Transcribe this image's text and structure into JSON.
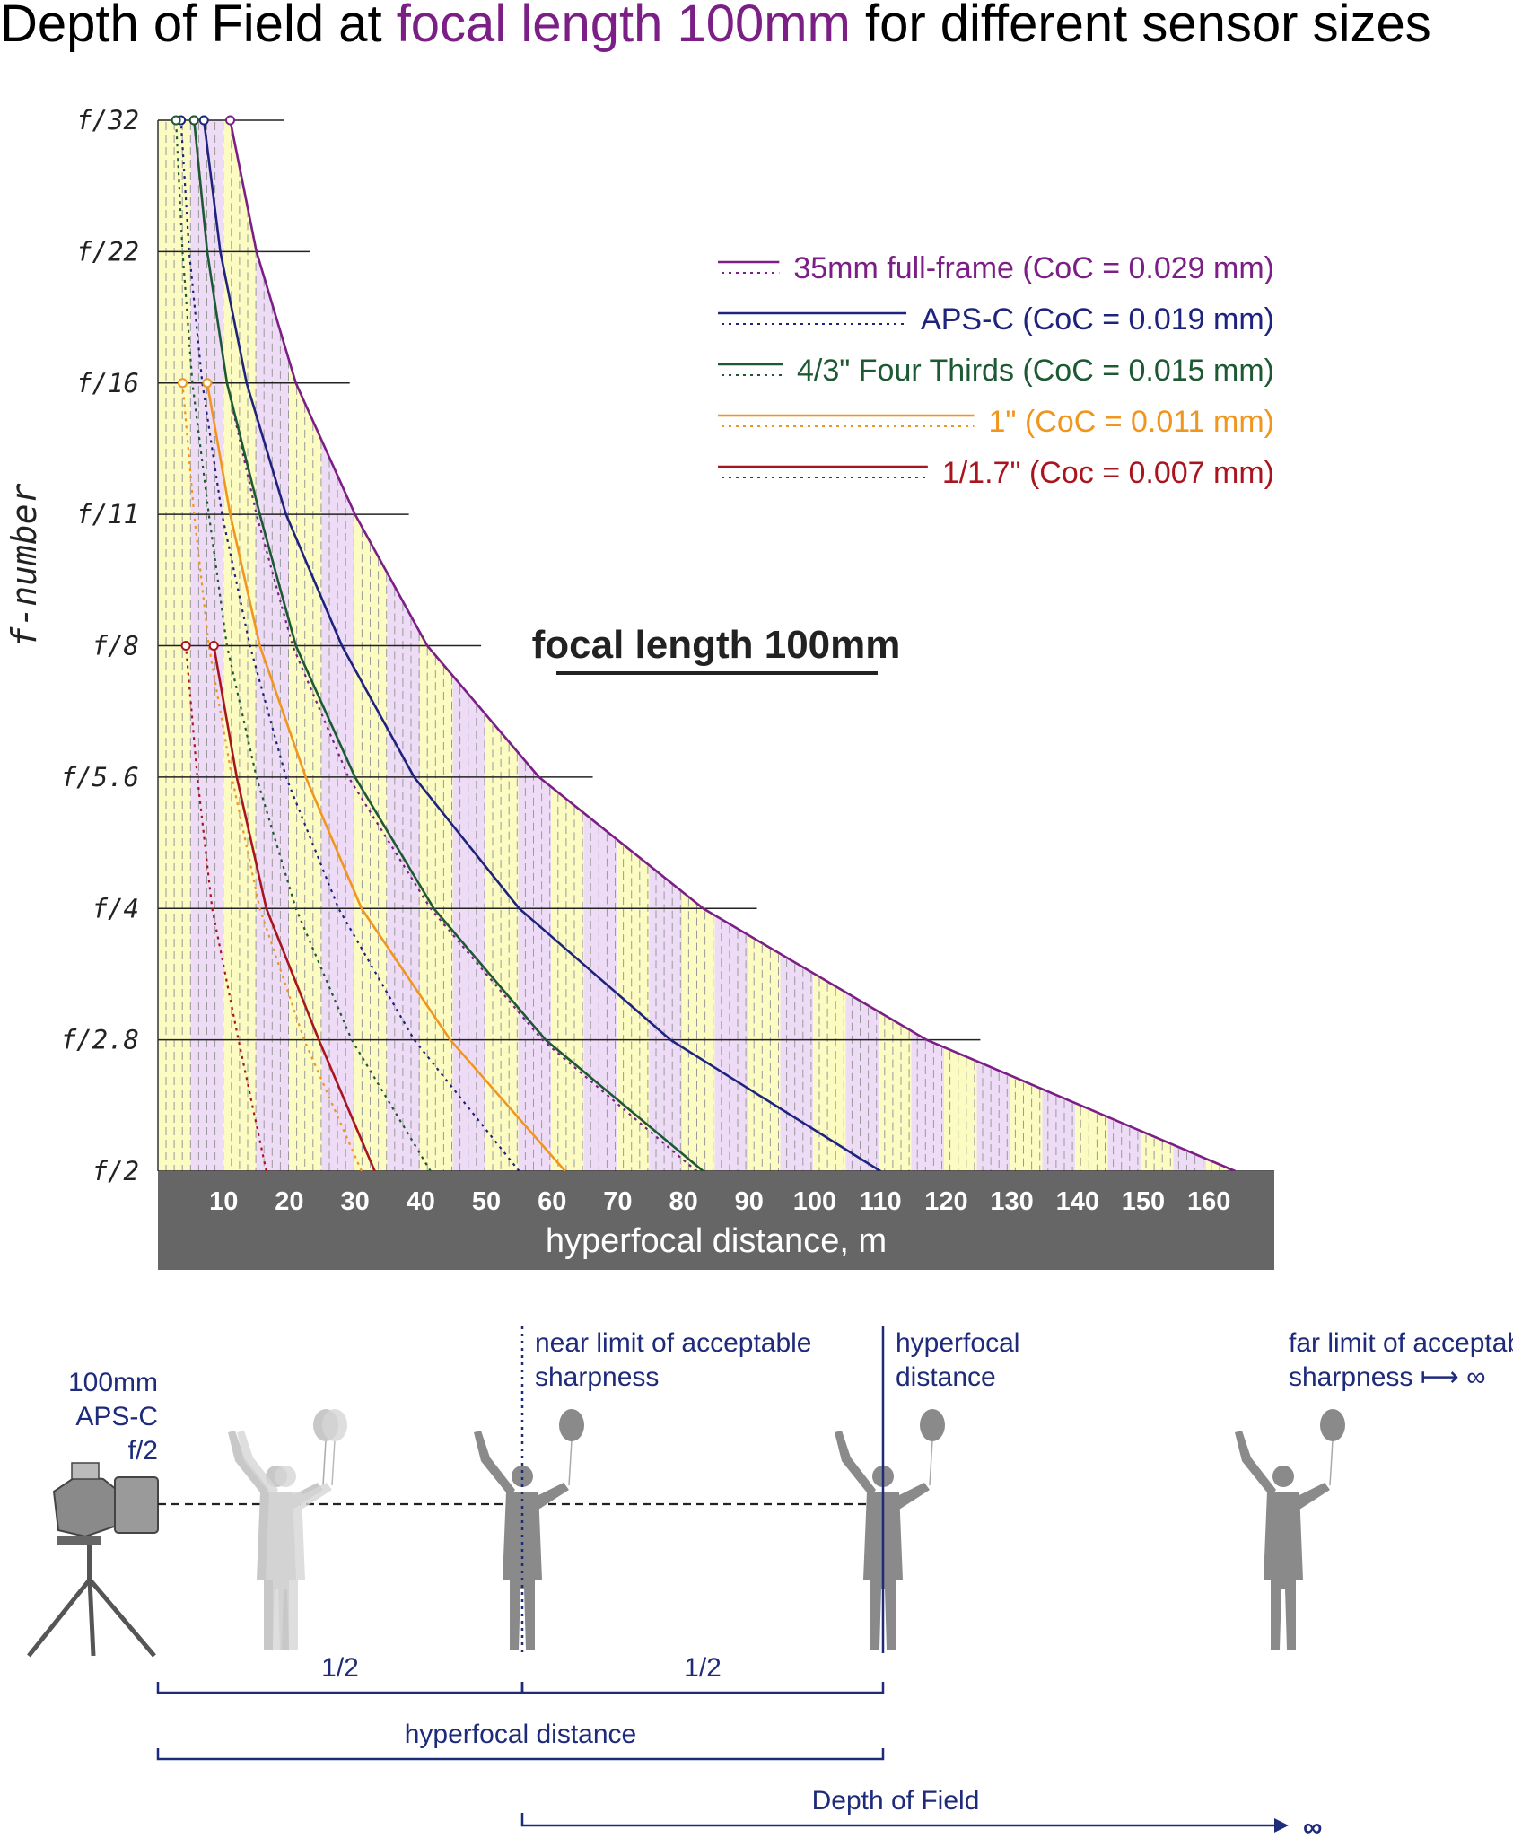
{
  "title": {
    "part1": "Depth of Field at ",
    "highlight": "focal length 100mm",
    "part2": " for different sensor sizes"
  },
  "colors": {
    "purple": "#7b1f86",
    "blue": "#1e237e",
    "green": "#1d5a34",
    "orange": "#f0961e",
    "red": "#a8151e",
    "yellow_band": "#fbfbc2",
    "lilac_band": "#eedcf7",
    "axis_band": "#666666",
    "diagram_navy": "#1e2a7a",
    "silhouette": "#8a8a8a"
  },
  "chart_data": {
    "type": "line",
    "title": "Depth of Field at focal length 100mm for different sensor sizes",
    "center_label": "focal length 100mm",
    "xlabel": "hyperfocal distance, m",
    "ylabel": "f-number",
    "xlim": [
      0,
      170
    ],
    "x_ticks": [
      10,
      20,
      30,
      40,
      50,
      60,
      70,
      80,
      90,
      100,
      110,
      120,
      130,
      140,
      150,
      160
    ],
    "f_stops": [
      "f/2",
      "f/2.8",
      "f/4",
      "f/5.6",
      "f/8",
      "f/11",
      "f/16",
      "f/22",
      "f/32"
    ],
    "grid": true,
    "legend_position": "top-right",
    "series": [
      {
        "name": "35mm full-frame (CoC = 0.029 mm)",
        "color": "#7b1f86",
        "hyperfocal": [
          164,
          117,
          83,
          58,
          41,
          30,
          21,
          15,
          11
        ],
        "near_limit": [
          82,
          58.5,
          41.5,
          29,
          20.5,
          15,
          10.5,
          7.5,
          5.5
        ]
      },
      {
        "name": "APS-C (CoC = 0.019 mm)",
        "color": "#1e237e",
        "hyperfocal": [
          110,
          78,
          55,
          39,
          28,
          19.5,
          13.5,
          9.5,
          7
        ],
        "near_limit": [
          55,
          39,
          27.5,
          19.5,
          14,
          9.75,
          6.75,
          4.75,
          3.5
        ]
      },
      {
        "name": "4/3\" Four Thirds (CoC = 0.015 mm)",
        "color": "#1d5a34",
        "hyperfocal": [
          83,
          59,
          42,
          30,
          21,
          15.5,
          10.5,
          7.5,
          5.5
        ],
        "near_limit": [
          41.5,
          29.5,
          21,
          15,
          10.5,
          7.75,
          5.25,
          3.75,
          2.75
        ]
      },
      {
        "name": "1\" (CoC = 0.011 mm)",
        "color": "#f0961e",
        "hyperfocal": [
          62,
          44.5,
          31,
          22.5,
          15.5,
          11,
          7.5,
          null,
          null
        ],
        "near_limit": [
          31,
          22.25,
          15.5,
          11.25,
          7.75,
          5.5,
          3.75,
          null,
          null
        ]
      },
      {
        "name": "1/1.7\" (Coc = 0.007 mm)",
        "color": "#a8151e",
        "hyperfocal": [
          33,
          24.5,
          16.5,
          12,
          8.5,
          null,
          null,
          null,
          null
        ],
        "near_limit": [
          16.5,
          12.25,
          8.25,
          6,
          4.25,
          null,
          null,
          null,
          null
        ]
      }
    ]
  },
  "diagram": {
    "camera_label": [
      "100mm",
      "APS-C",
      "f/2"
    ],
    "near_limit_label": [
      "near limit of acceptable",
      "sharpness"
    ],
    "hyperfocal_label": [
      "hyperfocal",
      "distance"
    ],
    "far_limit_label": [
      "far limit of acceptable",
      "sharpness ⟼ ∞"
    ],
    "half_label": "1/2",
    "hyperfocal_distance_label": "hyperfocal distance",
    "dof_label": "Depth of Field",
    "infinity_symbol": "∞"
  }
}
